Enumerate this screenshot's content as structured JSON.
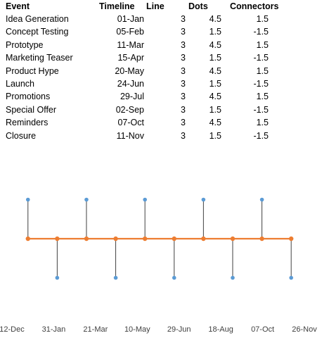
{
  "table": {
    "headers": [
      "Event",
      "Timeline",
      "Line",
      "Dots",
      "Connectors"
    ],
    "rows": [
      [
        "Idea Generation",
        "01-Jan",
        "3",
        "4.5",
        "1.5"
      ],
      [
        "Concept Testing",
        "05-Feb",
        "3",
        "1.5",
        "-1.5"
      ],
      [
        "Prototype",
        "11-Mar",
        "3",
        "4.5",
        "1.5"
      ],
      [
        "Marketing Teaser",
        "15-Apr",
        "3",
        "1.5",
        "-1.5"
      ],
      [
        "Product Hype",
        "20-May",
        "3",
        "4.5",
        "1.5"
      ],
      [
        "Launch",
        "24-Jun",
        "3",
        "1.5",
        "-1.5"
      ],
      [
        "Promotions",
        "29-Jul",
        "3",
        "4.5",
        "1.5"
      ],
      [
        "Special Offer",
        "02-Sep",
        "3",
        "1.5",
        "-1.5"
      ],
      [
        "Reminders",
        "07-Oct",
        "3",
        "4.5",
        "1.5"
      ],
      [
        "Closure",
        "11-Nov",
        "3",
        "1.5",
        "-1.5"
      ]
    ]
  },
  "chart_data": {
    "type": "scatter",
    "x_axis_type": "date",
    "x": [
      "01-Jan",
      "05-Feb",
      "11-Mar",
      "15-Apr",
      "20-May",
      "24-Jun",
      "29-Jul",
      "02-Sep",
      "07-Oct",
      "11-Nov"
    ],
    "series": [
      {
        "role": "line",
        "values": [
          3,
          3,
          3,
          3,
          3,
          3,
          3,
          3,
          3,
          3
        ],
        "color": "#ED7D31"
      },
      {
        "role": "dots",
        "values": [
          4.5,
          1.5,
          4.5,
          1.5,
          4.5,
          1.5,
          4.5,
          1.5,
          4.5,
          1.5
        ],
        "color": "#5B9BD5"
      }
    ],
    "xticks": [
      "12-Dec",
      "31-Jan",
      "21-Mar",
      "10-May",
      "29-Jun",
      "18-Aug",
      "07-Oct",
      "26-Nov"
    ],
    "xlim": [
      "12-Dec",
      "26-Nov"
    ],
    "ylim": [
      0,
      6
    ],
    "connector_color": "#404040",
    "grid": false,
    "legend": "none"
  }
}
